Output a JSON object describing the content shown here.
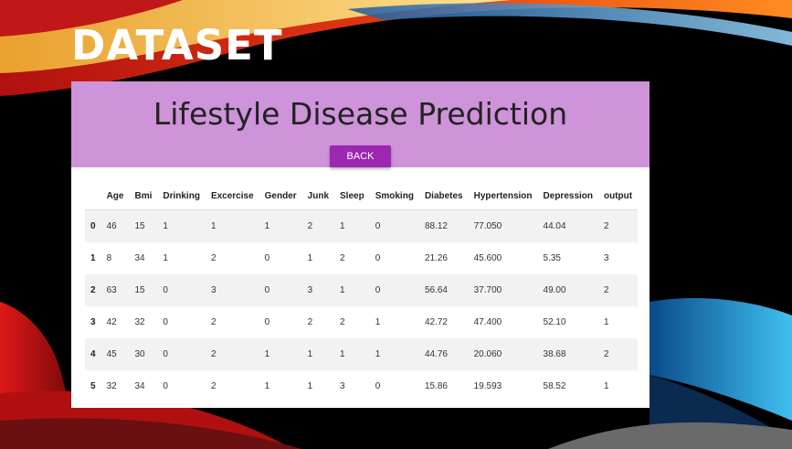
{
  "slide": {
    "title": "DATASET"
  },
  "app": {
    "title": "Lifestyle Disease Prediction",
    "back_label": "BACK"
  },
  "table": {
    "columns": [
      "",
      "Age",
      "Bmi",
      "Drinking",
      "Excercise",
      "Gender",
      "Junk",
      "Sleep",
      "Smoking",
      "Diabetes",
      "Hypertension",
      "Depression",
      "output"
    ],
    "rows": [
      [
        "0",
        "46",
        "15",
        "1",
        "1",
        "1",
        "2",
        "1",
        "0",
        "88.12",
        "77.050",
        "44.04",
        "2"
      ],
      [
        "1",
        "8",
        "34",
        "1",
        "2",
        "0",
        "1",
        "2",
        "0",
        "21.26",
        "45.600",
        "5.35",
        "3"
      ],
      [
        "2",
        "63",
        "15",
        "0",
        "3",
        "0",
        "3",
        "1",
        "0",
        "56.64",
        "37.700",
        "49.00",
        "2"
      ],
      [
        "3",
        "42",
        "32",
        "0",
        "2",
        "0",
        "2",
        "2",
        "1",
        "42.72",
        "47.400",
        "52.10",
        "1"
      ],
      [
        "4",
        "45",
        "30",
        "0",
        "2",
        "1",
        "1",
        "1",
        "1",
        "44.76",
        "20.060",
        "38.68",
        "2"
      ],
      [
        "5",
        "32",
        "34",
        "0",
        "2",
        "1",
        "1",
        "3",
        "0",
        "15.86",
        "19.593",
        "58.52",
        "1"
      ]
    ]
  },
  "colors": {
    "header_bg": "#ce93d8",
    "button_bg": "#9c27b0",
    "slide_bg": "#000000"
  }
}
